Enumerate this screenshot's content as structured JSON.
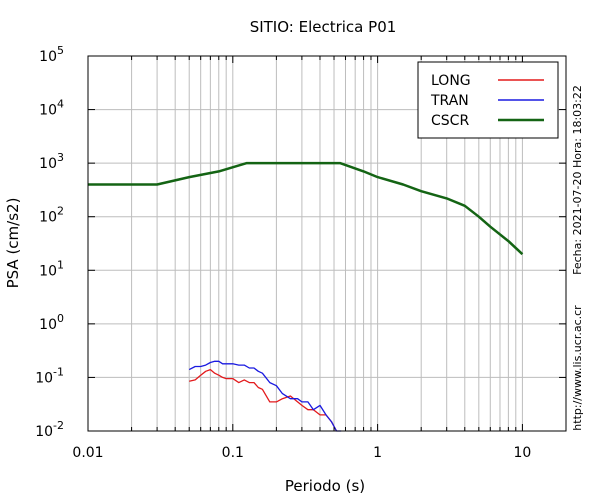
{
  "chart_data": {
    "type": "line",
    "title": "SITIO: Electrica P01",
    "xlabel": "Periodo (s)",
    "ylabel": "PSA (cm/s2)",
    "x_scale": "log",
    "y_scale": "log",
    "xlim": [
      0.01,
      20
    ],
    "ylim": [
      0.01,
      100000
    ],
    "x_ticks": [
      {
        "value": 0.01,
        "label": "0.01"
      },
      {
        "value": 0.1,
        "label": "0.1"
      },
      {
        "value": 1,
        "label": "1"
      },
      {
        "value": 10,
        "label": "10"
      }
    ],
    "y_ticks": [
      {
        "value": 0.01,
        "base": "10",
        "exp": "-2"
      },
      {
        "value": 0.1,
        "base": "10",
        "exp": "-1"
      },
      {
        "value": 1,
        "base": "10",
        "exp": "0"
      },
      {
        "value": 10,
        "base": "10",
        "exp": "1"
      },
      {
        "value": 100,
        "base": "10",
        "exp": "2"
      },
      {
        "value": 1000,
        "base": "10",
        "exp": "3"
      },
      {
        "value": 10000,
        "base": "10",
        "exp": "4"
      },
      {
        "value": 100000,
        "base": "10",
        "exp": "5"
      }
    ],
    "grid": true,
    "legend_position": "top-right",
    "series": [
      {
        "name": "LONG",
        "color": "#e31a1c",
        "x": [
          0.05,
          0.055,
          0.06,
          0.065,
          0.07,
          0.075,
          0.08,
          0.085,
          0.09,
          0.1,
          0.11,
          0.12,
          0.13,
          0.14,
          0.15,
          0.16,
          0.18,
          0.2,
          0.22,
          0.25,
          0.28,
          0.3,
          0.33,
          0.36,
          0.4,
          0.44,
          0.48,
          0.52
        ],
        "y": [
          0.085,
          0.09,
          0.11,
          0.13,
          0.14,
          0.12,
          0.11,
          0.1,
          0.095,
          0.095,
          0.08,
          0.09,
          0.08,
          0.08,
          0.065,
          0.06,
          0.035,
          0.035,
          0.04,
          0.045,
          0.035,
          0.03,
          0.025,
          0.025,
          0.02,
          0.02,
          0.015,
          0.01
        ]
      },
      {
        "name": "TRAN",
        "color": "#1a1ae0",
        "x": [
          0.05,
          0.055,
          0.06,
          0.065,
          0.07,
          0.075,
          0.08,
          0.085,
          0.09,
          0.1,
          0.11,
          0.12,
          0.13,
          0.14,
          0.15,
          0.16,
          0.18,
          0.2,
          0.22,
          0.25,
          0.28,
          0.3,
          0.33,
          0.36,
          0.4,
          0.44,
          0.48,
          0.52,
          0.56
        ],
        "y": [
          0.14,
          0.16,
          0.16,
          0.17,
          0.19,
          0.2,
          0.2,
          0.18,
          0.18,
          0.18,
          0.17,
          0.17,
          0.15,
          0.15,
          0.13,
          0.12,
          0.08,
          0.07,
          0.05,
          0.04,
          0.04,
          0.035,
          0.035,
          0.025,
          0.03,
          0.02,
          0.015,
          0.01,
          0.01
        ]
      },
      {
        "name": "CSCR",
        "color": "#146414",
        "x": [
          0.01,
          0.03,
          0.05,
          0.08,
          0.125,
          0.2,
          0.3,
          0.55,
          0.8,
          1,
          1.5,
          2,
          3,
          4,
          5,
          6,
          8,
          10
        ],
        "y": [
          400,
          400,
          550,
          700,
          1000,
          1000,
          1000,
          1000,
          700,
          550,
          400,
          300,
          220,
          160,
          100,
          65,
          35,
          20
        ]
      }
    ],
    "side_text": {
      "timestamp": "Fecha: 2021-07-20 Hora: 18:03:22",
      "url": "http://www.lis.ucr.ac.cr"
    }
  }
}
